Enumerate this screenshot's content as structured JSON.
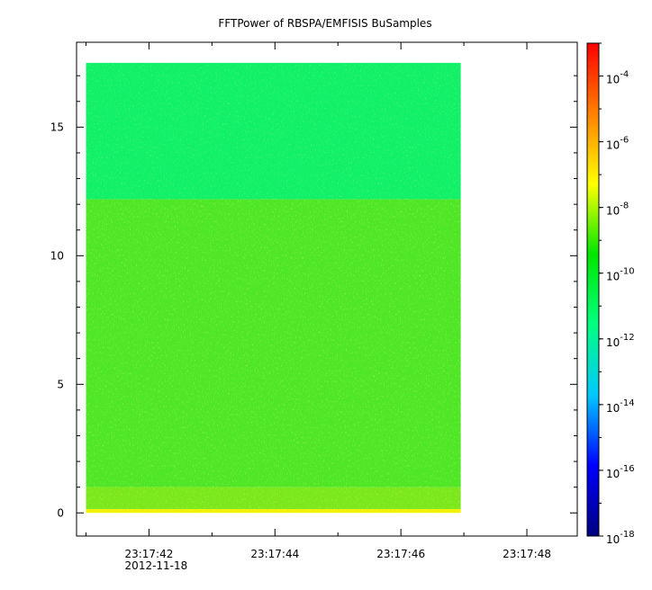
{
  "chart_data": {
    "type": "heatmap",
    "title": "FFTPower of RBSPA/EMFISIS  BuSamples",
    "xlabel": "",
    "ylabel": "",
    "x_ticks": [
      {
        "label": "23:17:42",
        "sublabel": "2012-11-18",
        "t": 42
      },
      {
        "label": "23:17:44",
        "sublabel": "",
        "t": 44
      },
      {
        "label": "23:17:46",
        "sublabel": "",
        "t": 46
      },
      {
        "label": "23:17:48",
        "sublabel": "",
        "t": 48
      }
    ],
    "x_minor_ticks": [
      41,
      43,
      45,
      47
    ],
    "xlim_seconds": [
      40.85,
      48.8
    ],
    "data_x_range_seconds": [
      41.0,
      46.95
    ],
    "y_ticks": [
      0,
      5,
      10,
      15
    ],
    "ylim": [
      -0.9,
      18.3
    ],
    "data_y_range": [
      0,
      17.5
    ],
    "colorbar": {
      "scale": "log",
      "range": [
        1e-18,
        0.001
      ],
      "ticks": [
        {
          "base": "10",
          "exp": "-18",
          "value": -18
        },
        {
          "base": "10",
          "exp": "-16",
          "value": -16
        },
        {
          "base": "10",
          "exp": "-14",
          "value": -14
        },
        {
          "base": "10",
          "exp": "-12",
          "value": -12
        },
        {
          "base": "10",
          "exp": "-10",
          "value": -10
        },
        {
          "base": "10",
          "exp": "-8",
          "value": -8
        },
        {
          "base": "10",
          "exp": "-6",
          "value": -6
        },
        {
          "base": "10",
          "exp": "-4",
          "value": -4
        }
      ],
      "colormap": [
        "#00007f",
        "#0000ff",
        "#00c8ff",
        "#00ff80",
        "#00e600",
        "#ffff00",
        "#ff8000",
        "#ff0000"
      ]
    },
    "regions": [
      {
        "y_range": [
          0,
          0.15
        ],
        "log_power": -8.5,
        "color": "#f2f200"
      },
      {
        "y_range": [
          0.15,
          1.0
        ],
        "log_power": -9.8,
        "color": "#7ae81c"
      },
      {
        "y_range": [
          1.0,
          1.4
        ],
        "log_power": -8.6,
        "color": "#e6ee00",
        "x_range_seconds": [
          41.0,
          43.2
        ]
      },
      {
        "y_range": [
          1.0,
          12.2
        ],
        "log_power": -10.3,
        "color": "#4fe628"
      },
      {
        "y_range": [
          12.2,
          17.5
        ],
        "log_power": -12.0,
        "color": "#12f06a"
      }
    ]
  }
}
